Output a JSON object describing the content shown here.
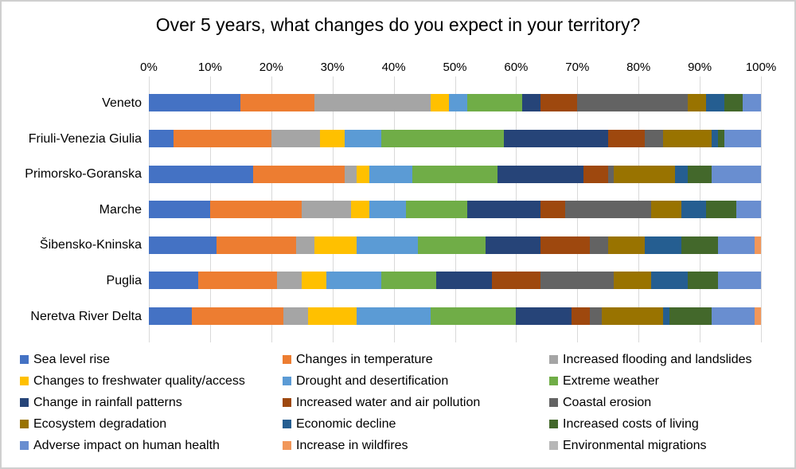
{
  "title": "Over 5 years, what changes do you expect in your territory?",
  "chart_data": {
    "type": "bar",
    "stacked": true,
    "orientation": "horizontal",
    "unit": "percent",
    "xlim": [
      0,
      100
    ],
    "x_ticks": [
      "0%",
      "10%",
      "20%",
      "30%",
      "40%",
      "50%",
      "60%",
      "70%",
      "80%",
      "90%",
      "100%"
    ],
    "grid": true,
    "legend_position": "bottom",
    "categories": [
      "Veneto",
      "Friuli-Venezia Giulia",
      "Primorsko-Goranska",
      "Marche",
      "Šibensko-Kninska",
      "Puglia",
      "Neretva River Delta"
    ],
    "series": [
      {
        "name": "Sea level rise",
        "color": "#4472C4",
        "values": [
          15,
          4,
          17,
          10,
          11,
          8,
          7
        ]
      },
      {
        "name": "Changes in temperature",
        "color": "#ED7D31",
        "values": [
          12,
          16,
          15,
          15,
          13,
          13,
          15
        ]
      },
      {
        "name": "Increased flooding and landslides",
        "color": "#A5A5A5",
        "values": [
          19,
          8,
          2,
          8,
          3,
          4,
          4
        ]
      },
      {
        "name": "Changes to freshwater quality/access",
        "color": "#FFC000",
        "values": [
          3,
          4,
          2,
          3,
          7,
          4,
          8
        ]
      },
      {
        "name": "Drought and desertification",
        "color": "#5B9BD5",
        "values": [
          3,
          6,
          7,
          6,
          10,
          9,
          12
        ]
      },
      {
        "name": "Extreme weather",
        "color": "#70AD47",
        "values": [
          9,
          20,
          14,
          10,
          11,
          9,
          14
        ]
      },
      {
        "name": "Change in rainfall patterns",
        "color": "#264478",
        "values": [
          3,
          17,
          14,
          12,
          9,
          9,
          9
        ]
      },
      {
        "name": "Increased water and air pollution",
        "color": "#9E480E",
        "values": [
          6,
          6,
          4,
          4,
          8,
          8,
          3
        ]
      },
      {
        "name": "Coastal erosion",
        "color": "#636363",
        "values": [
          18,
          3,
          1,
          14,
          3,
          12,
          2
        ]
      },
      {
        "name": "Ecosystem degradation",
        "color": "#997300",
        "values": [
          3,
          8,
          10,
          5,
          6,
          6,
          10
        ]
      },
      {
        "name": "Economic decline",
        "color": "#255E91",
        "values": [
          3,
          1,
          2,
          4,
          6,
          6,
          1
        ]
      },
      {
        "name": "Increased costs of living",
        "color": "#43682B",
        "values": [
          3,
          1,
          4,
          5,
          6,
          5,
          7
        ]
      },
      {
        "name": "Adverse impact on human health",
        "color": "#698ED0",
        "values": [
          3,
          6,
          8,
          4,
          6,
          7,
          7
        ]
      },
      {
        "name": "Increase in wildfires",
        "color": "#F1975A",
        "values": [
          0,
          0,
          0,
          0,
          1,
          0,
          1
        ]
      },
      {
        "name": "Environmental migrations",
        "color": "#B7B7B7",
        "values": [
          0,
          0,
          0,
          0,
          0,
          0,
          0
        ]
      }
    ]
  }
}
